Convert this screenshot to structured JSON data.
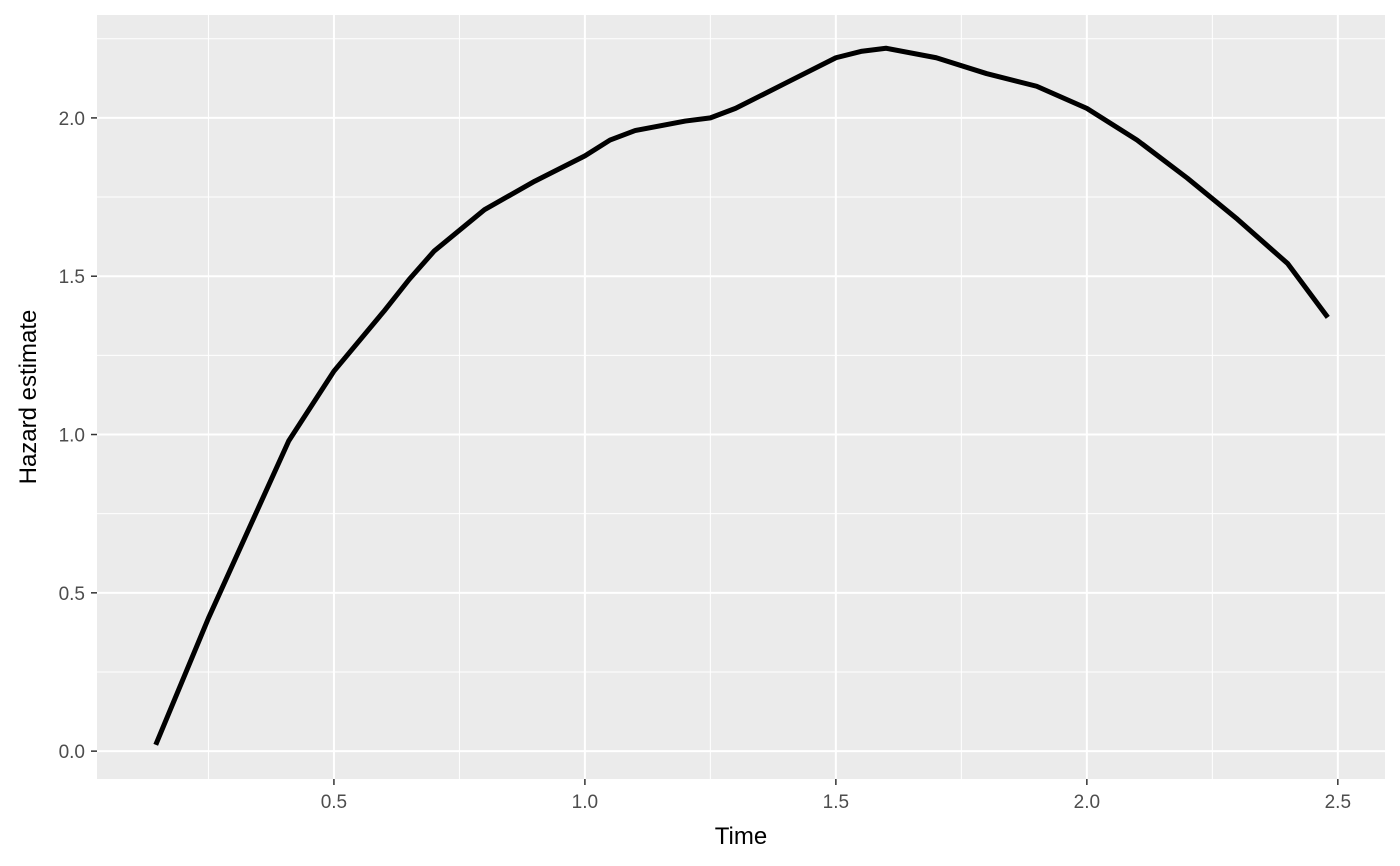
{
  "chart_data": {
    "type": "line",
    "x_label": "Time",
    "y_label": "Hazard estimate",
    "x": [
      0.145,
      0.25,
      0.35,
      0.41,
      0.5,
      0.6,
      0.65,
      0.7,
      0.8,
      0.9,
      1.0,
      1.05,
      1.1,
      1.2,
      1.25,
      1.3,
      1.4,
      1.5,
      1.55,
      1.6,
      1.7,
      1.8,
      1.9,
      2.0,
      2.1,
      2.2,
      2.3,
      2.4,
      2.48
    ],
    "values": [
      0.02,
      0.42,
      0.77,
      0.98,
      1.2,
      1.39,
      1.49,
      1.58,
      1.71,
      1.8,
      1.88,
      1.93,
      1.96,
      1.99,
      2.0,
      2.03,
      2.11,
      2.19,
      2.21,
      2.22,
      2.19,
      2.14,
      2.1,
      2.03,
      1.93,
      1.81,
      1.68,
      1.54,
      1.37
    ],
    "color": "#000000",
    "xlim": [
      0.028,
      2.594
    ],
    "ylim": [
      -0.088,
      2.325
    ],
    "xticks": [
      0.5,
      {
        "value": 1,
        "label": "1.0"
      },
      1.5,
      {
        "value": 2,
        "label": "2.0"
      },
      2.5
    ],
    "yticks": [
      {
        "value": 0,
        "label": "0.0"
      },
      0.5,
      {
        "value": 1,
        "label": "1.0"
      },
      1.5,
      {
        "value": 2,
        "label": "2.0"
      }
    ],
    "x_minor_ticks": [
      0.25,
      0.75,
      1.25,
      1.75,
      2.25
    ],
    "y_minor_ticks": [
      0.25,
      0.75,
      1.25,
      1.75,
      2.25
    ],
    "grid": true
  }
}
